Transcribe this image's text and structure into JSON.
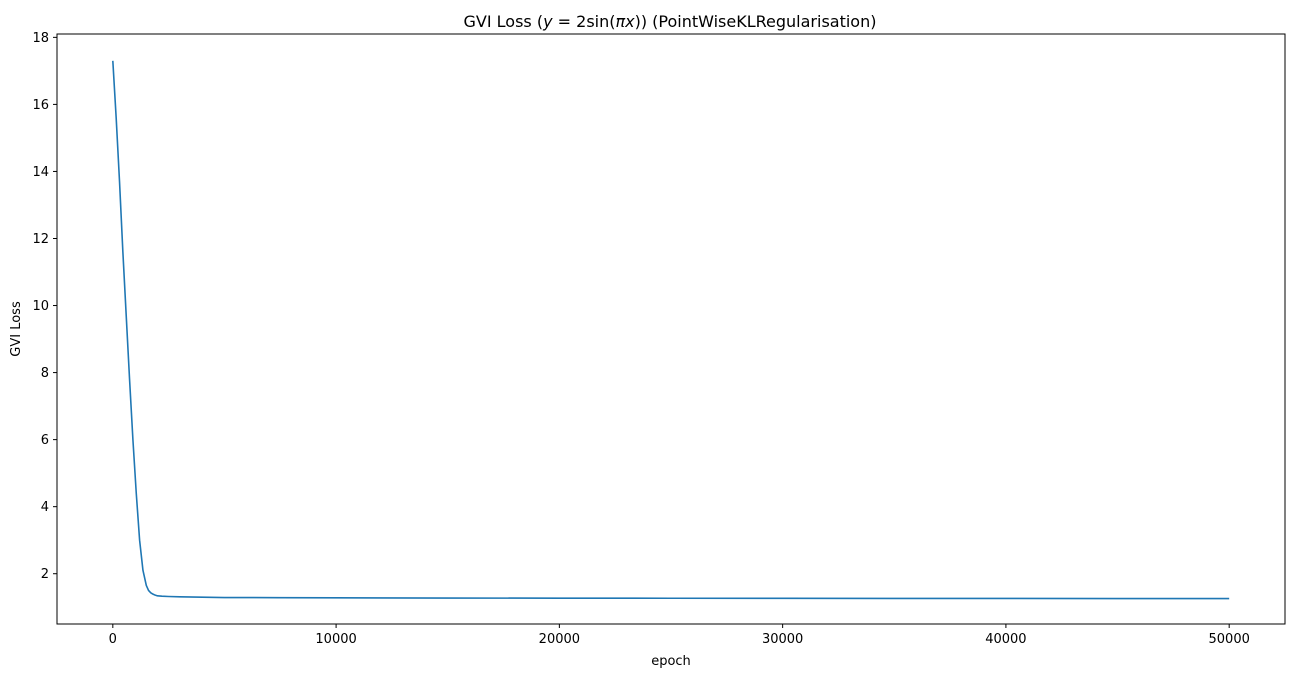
{
  "chart_data": {
    "type": "line",
    "title": {
      "prefix": "GVI Loss (",
      "y_var": "y",
      "equals": " = 2sin(",
      "pi": "π",
      "x_var": "x",
      "suffix": ")) (PointWiseKLRegularisation)"
    },
    "xlabel": "epoch",
    "ylabel": "GVI Loss",
    "xlim": [
      -2500,
      52500
    ],
    "ylim": [
      0.5,
      18.1
    ],
    "xticks": [
      0,
      10000,
      20000,
      30000,
      40000,
      50000
    ],
    "xtick_labels": [
      "0",
      "10000",
      "20000",
      "30000",
      "40000",
      "50000"
    ],
    "yticks": [
      2,
      4,
      6,
      8,
      10,
      12,
      14,
      16,
      18
    ],
    "ytick_labels": [
      "2",
      "4",
      "6",
      "8",
      "10",
      "12",
      "14",
      "16",
      "18"
    ],
    "grid": false,
    "series": [
      {
        "color": "#1f77b4",
        "x": [
          0,
          150,
          300,
          450,
          600,
          750,
          900,
          1050,
          1200,
          1350,
          1500,
          1600,
          1700,
          1800,
          1900,
          2000,
          2200,
          2500,
          3000,
          4000,
          5000,
          7500,
          10000,
          15000,
          20000,
          25000,
          30000,
          35000,
          40000,
          45000,
          50000
        ],
        "y": [
          17.3,
          15.6,
          13.7,
          11.6,
          9.7,
          7.8,
          6.0,
          4.4,
          3.0,
          2.1,
          1.65,
          1.5,
          1.43,
          1.39,
          1.36,
          1.34,
          1.33,
          1.32,
          1.31,
          1.3,
          1.29,
          1.285,
          1.28,
          1.275,
          1.27,
          1.268,
          1.265,
          1.263,
          1.262,
          1.26,
          1.26
        ]
      }
    ]
  }
}
